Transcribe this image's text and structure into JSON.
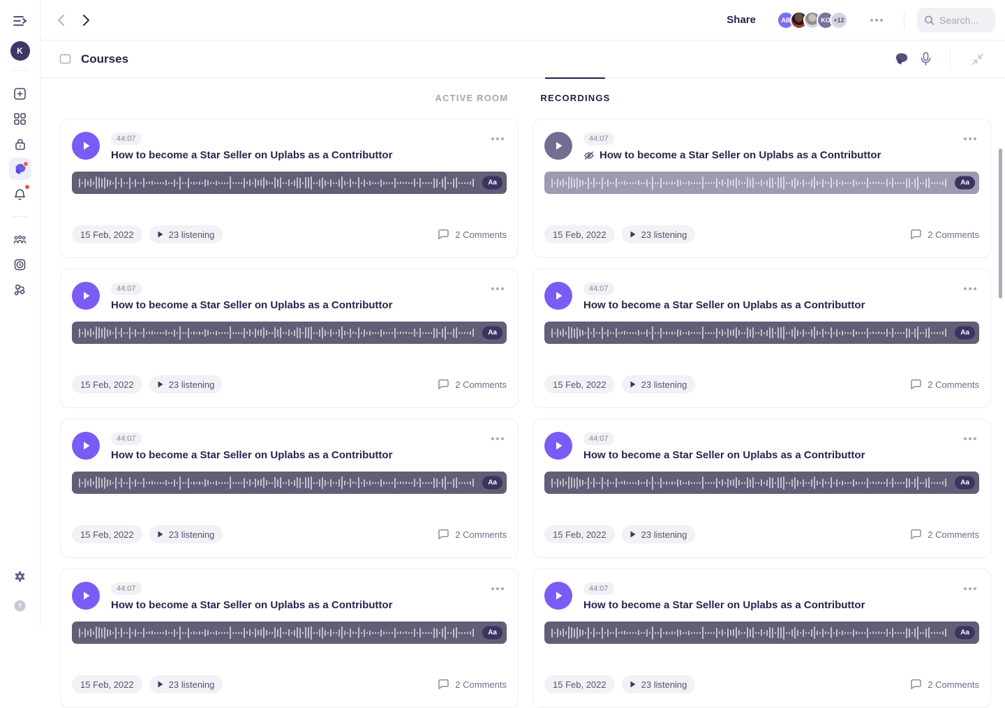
{
  "colors": {
    "accent": "#7B5BF5",
    "accent_muted": "#716D93",
    "waveform": "#615E76",
    "waveform_muted": "#9D9AB1",
    "notification_dot": "#F05B3B"
  },
  "sidebar": {
    "user_initial": "K",
    "icons": [
      "sidebar-toggle",
      "add",
      "dashboard",
      "lock",
      "chat",
      "notifications",
      "team",
      "schedule",
      "workflow",
      "settings",
      "help"
    ],
    "active_item": "chat"
  },
  "topbar": {
    "share_label": "Share",
    "avatars": [
      {
        "initials": "AB"
      },
      {
        "photo": "man"
      },
      {
        "photo": "woman"
      },
      {
        "initials": "KO"
      },
      {
        "overflow": "+12"
      }
    ],
    "search_placeholder": "Search..."
  },
  "header": {
    "title": "Courses"
  },
  "tabs": [
    {
      "label": "ACTIVE ROOM",
      "active": false
    },
    {
      "label": "RECORDINGS",
      "active": true
    }
  ],
  "labels": {
    "waveform_style": "Aa"
  },
  "cards": [
    {
      "duration": "44:07",
      "title": "How to become a Star Seller on Uplabs as a Contributtor",
      "hidden": false,
      "date": "15 Feb, 2022",
      "listening": "23 listening",
      "comments": "2 Comments"
    },
    {
      "duration": "44:07",
      "title": "How to become a Star Seller on Uplabs as a Contributtor",
      "hidden": true,
      "date": "15 Feb, 2022",
      "listening": "23 listening",
      "comments": "2 Comments"
    },
    {
      "duration": "44:07",
      "title": "How to become a Star Seller on Uplabs as a Contributtor",
      "hidden": false,
      "date": "15 Feb, 2022",
      "listening": "23 listening",
      "comments": "2 Comments"
    },
    {
      "duration": "44:07",
      "title": "How to become a Star Seller on Uplabs as a Contributtor",
      "hidden": false,
      "date": "15 Feb, 2022",
      "listening": "23 listening",
      "comments": "2 Comments"
    },
    {
      "duration": "44:07",
      "title": "How to become a Star Seller on Uplabs as a Contributtor",
      "hidden": false,
      "date": "15 Feb, 2022",
      "listening": "23 listening",
      "comments": "2 Comments"
    },
    {
      "duration": "44:07",
      "title": "How to become a Star Seller on Uplabs as a Contributtor",
      "hidden": false,
      "date": "15 Feb, 2022",
      "listening": "23 listening",
      "comments": "2 Comments"
    },
    {
      "duration": "44:07",
      "title": "How to become a Star Seller on Uplabs as a Contributtor",
      "hidden": false,
      "date": "15 Feb, 2022",
      "listening": "23 listening",
      "comments": "2 Comments"
    },
    {
      "duration": "44:07",
      "title": "How to become a Star Seller on Uplabs as a Contributtor",
      "hidden": false,
      "date": "15 Feb, 2022",
      "listening": "23 listening",
      "comments": "2 Comments"
    }
  ]
}
